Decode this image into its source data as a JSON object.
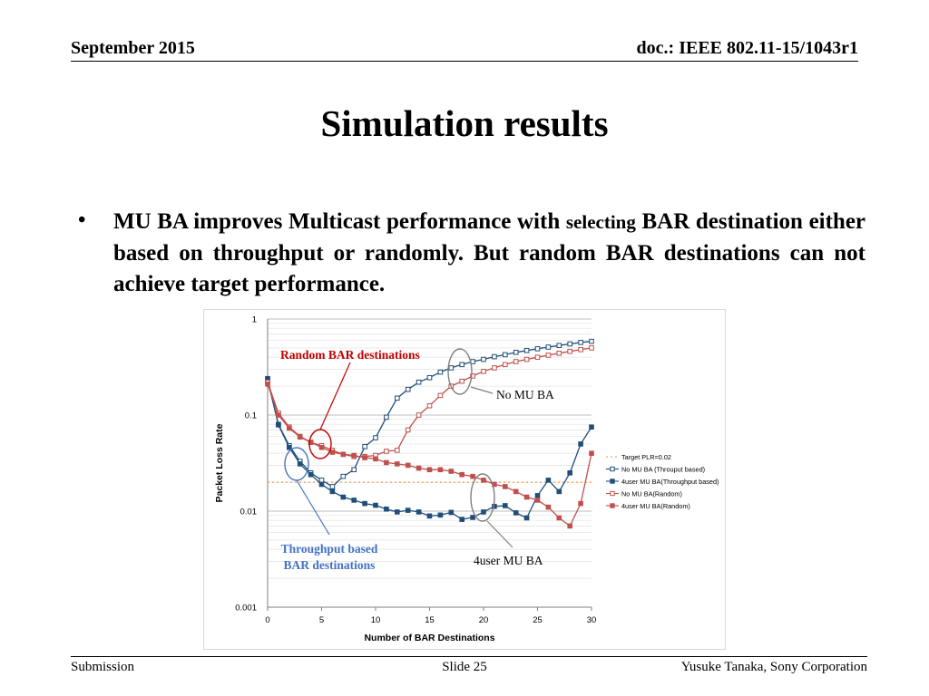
{
  "header": {
    "date": "September 2015",
    "doc": "doc.: IEEE 802.11-15/1043r1"
  },
  "slide": {
    "title": "Simulation results",
    "bullet": {
      "part1": "MU BA improves Multicast performance with",
      "part2": "selecting",
      "part3": "BAR destination either based on throughput or randomly. But random BAR destinations can not achieve target performance."
    }
  },
  "footer": {
    "left": "Submission",
    "center": "Slide 25",
    "right": "Yusuke Tanaka, Sony Corporation"
  },
  "annotations": {
    "random": "Random BAR destinations",
    "no_mu_ba": "No MU BA",
    "throughput_line1": "Throughput based",
    "throughput_line2": "BAR destinations",
    "four_user": "4user MU BA"
  },
  "colors": {
    "blue_series": "#1f4e79",
    "red_series": "#c0504d",
    "target": "#f79646",
    "random_annotation": "#c00000",
    "throughput_annotation": "#4472c4"
  },
  "chart_data": {
    "type": "line",
    "xlabel": "Number of BAR Destinations",
    "ylabel": "Packet Loss Rate",
    "x_ticks": [
      0,
      5,
      10,
      15,
      20,
      25,
      30
    ],
    "y_ticks": [
      {
        "value": 0.001,
        "label": "0.001"
      },
      {
        "value": 0.01,
        "label": "0.01"
      },
      {
        "value": 0.1,
        "label": "0.1"
      },
      {
        "value": 1,
        "label": "1"
      }
    ],
    "xlim": [
      0,
      30
    ],
    "ylim": [
      0.001,
      1
    ],
    "yscale": "log",
    "grid": "horizontal",
    "legend": "right",
    "x": [
      0,
      1,
      2,
      3,
      4,
      5,
      6,
      7,
      8,
      9,
      10,
      11,
      12,
      13,
      14,
      15,
      16,
      17,
      18,
      19,
      20,
      21,
      22,
      23,
      24,
      25,
      26,
      27,
      28,
      29,
      30
    ],
    "series": [
      {
        "name": "Target PLR=0.02",
        "values": [
          0.02,
          0.02,
          0.02,
          0.02,
          0.02,
          0.02,
          0.02,
          0.02,
          0.02,
          0.02,
          0.02,
          0.02,
          0.02,
          0.02,
          0.02,
          0.02,
          0.02,
          0.02,
          0.02,
          0.02,
          0.02,
          0.02,
          0.02,
          0.02,
          0.02,
          0.02,
          0.02,
          0.02,
          0.02,
          0.02,
          0.02
        ]
      },
      {
        "name": "No MU BA (Throuput based)",
        "values": [
          0.23,
          0.08,
          0.048,
          0.033,
          0.025,
          0.021,
          0.018,
          0.023,
          0.027,
          0.047,
          0.058,
          0.095,
          0.15,
          0.185,
          0.22,
          0.245,
          0.28,
          0.31,
          0.335,
          0.36,
          0.38,
          0.405,
          0.425,
          0.45,
          0.47,
          0.49,
          0.51,
          0.53,
          0.55,
          0.57,
          0.585
        ]
      },
      {
        "name": "4user MU BA(Throughput based)",
        "values": [
          0.24,
          0.079,
          0.046,
          0.031,
          0.024,
          0.019,
          0.016,
          0.014,
          0.013,
          0.012,
          0.0115,
          0.0105,
          0.0098,
          0.0102,
          0.0098,
          0.0089,
          0.0091,
          0.0097,
          0.0082,
          0.0086,
          0.0098,
          0.0112,
          0.0114,
          0.0096,
          0.0085,
          0.0145,
          0.021,
          0.016,
          0.025,
          0.05,
          0.075
        ]
      },
      {
        "name": "No MU BA(Random)",
        "values": [
          0.22,
          0.105,
          0.075,
          0.06,
          0.052,
          0.048,
          0.043,
          0.039,
          0.037,
          0.037,
          0.038,
          0.042,
          0.043,
          0.07,
          0.1,
          0.125,
          0.16,
          0.2,
          0.225,
          0.255,
          0.285,
          0.31,
          0.335,
          0.36,
          0.38,
          0.4,
          0.42,
          0.44,
          0.46,
          0.48,
          0.5
        ]
      },
      {
        "name": "4user MU BA(Random)",
        "values": [
          0.21,
          0.1,
          0.073,
          0.059,
          0.052,
          0.046,
          0.041,
          0.039,
          0.038,
          0.036,
          0.035,
          0.032,
          0.031,
          0.03,
          0.028,
          0.027,
          0.027,
          0.026,
          0.024,
          0.023,
          0.021,
          0.019,
          0.018,
          0.016,
          0.014,
          0.013,
          0.011,
          0.0085,
          0.007,
          0.012,
          0.04
        ]
      }
    ]
  }
}
